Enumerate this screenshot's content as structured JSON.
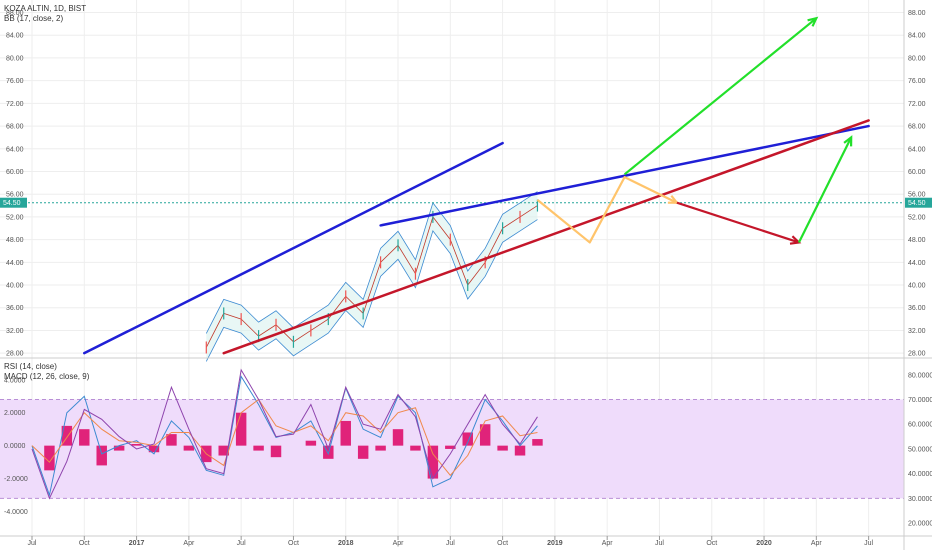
{
  "legends": {
    "symbol": "KOZA ALTIN, 1D, BIST",
    "bb": "BB (17, close, 2)",
    "rsi": "RSI (14, close)",
    "macd": "MACD (12, 26, close, 9)"
  },
  "current_price_label": "54.50",
  "colors": {
    "background": "#ffffff",
    "grid": "#eeeeee",
    "current_price": "#26a69a",
    "upper_trend": "#1f1fd6",
    "lower_trend": "#c4162a",
    "projection_orange": "#ffc46b",
    "projection_green": "#22e02a",
    "projection_red": "#c4162a",
    "rsi_band_fill": "#efdcfb",
    "rsi_band_line": "#b98fd6",
    "rsi_line": "#8e44ad",
    "macd_hist": "#e0237a",
    "macd_line": "#3c8ad1",
    "signal_line": "#f0894c"
  },
  "chart_data": [
    {
      "type": "line",
      "title": "KOZA ALTIN, 1D, BIST",
      "indicator": "BB (17, close, 2)",
      "x_ticks": [
        "Jul",
        "Oct",
        "2017",
        "Apr",
        "Jul",
        "Oct",
        "2018",
        "Apr",
        "Jul",
        "Oct",
        "2019",
        "Apr",
        "Jul",
        "Oct",
        "2020",
        "Apr",
        "Jul"
      ],
      "y_ticks": [
        "28.00",
        "32.00",
        "36.00",
        "40.00",
        "44.00",
        "48.00",
        "52.00",
        "56.00",
        "60.00",
        "64.00",
        "68.00",
        "72.00",
        "76.00",
        "80.00",
        "84.00",
        "88.00"
      ],
      "ylim": [
        27.5,
        89.5
      ],
      "current_price": 54.5,
      "price_series": {
        "x": [
          "2017-05",
          "2017-06",
          "2017-07",
          "2017-08",
          "2017-09",
          "2017-10",
          "2017-11",
          "2017-12",
          "2018-01",
          "2018-02",
          "2018-03",
          "2018-04",
          "2018-05",
          "2018-06",
          "2018-07",
          "2018-08",
          "2018-09",
          "2018-10",
          "2018-11",
          "2018-12"
        ],
        "y": [
          29,
          35,
          34,
          31,
          33,
          30,
          32,
          34,
          38,
          35,
          44,
          47,
          42,
          52,
          48,
          40,
          44,
          50,
          52,
          54
        ]
      },
      "trendlines": [
        {
          "name": "upper-channel",
          "color": "upper",
          "points": [
            [
              "2016-10",
              28
            ],
            [
              "2018-10",
              65
            ]
          ]
        },
        {
          "name": "resistance",
          "color": "upper",
          "points": [
            [
              "2018-03",
              50.5
            ],
            [
              "2020-07",
              68
            ]
          ]
        },
        {
          "name": "support",
          "color": "lower",
          "points": [
            [
              "2017-06",
              28
            ],
            [
              "2020-07",
              69
            ]
          ]
        }
      ],
      "projections": [
        {
          "color": "orange",
          "points": [
            [
              "2018-12",
              55
            ],
            [
              "2019-03",
              47.5
            ],
            [
              "2019-05",
              59
            ],
            [
              "2019-08",
              54.5
            ]
          ]
        },
        {
          "color": "green",
          "points": [
            [
              "2019-05",
              59.5
            ],
            [
              "2020-04",
              87
            ]
          ]
        },
        {
          "color": "red",
          "points": [
            [
              "2019-08",
              54.5
            ],
            [
              "2020-03",
              47.5
            ]
          ]
        },
        {
          "color": "green",
          "points": [
            [
              "2020-03",
              47.5
            ],
            [
              "2020-06",
              66
            ]
          ]
        }
      ]
    },
    {
      "type": "line",
      "indicators": [
        "RSI (14, close)",
        "MACD (12, 26, close, 9)"
      ],
      "left_ticks": [
        "4.0000",
        "2.0000",
        "0.0000",
        "-2.0000",
        "-4.0000"
      ],
      "right_ticks": [
        "80.0000",
        "70.0000",
        "60.0000",
        "50.0000",
        "40.0000",
        "30.0000",
        "20.0000"
      ],
      "macd_ylim": [
        -5,
        5.2
      ],
      "rsi_ylim": [
        18,
        86
      ],
      "rsi_band": [
        30,
        70
      ],
      "x": [
        "2016-07",
        "2016-08",
        "2016-09",
        "2016-10",
        "2016-11",
        "2016-12",
        "2017-01",
        "2017-02",
        "2017-03",
        "2017-04",
        "2017-05",
        "2017-06",
        "2017-07",
        "2017-08",
        "2017-09",
        "2017-10",
        "2017-11",
        "2017-12",
        "2018-01",
        "2018-02",
        "2018-03",
        "2018-04",
        "2018-05",
        "2018-06",
        "2018-07",
        "2018-08",
        "2018-09",
        "2018-10",
        "2018-11",
        "2018-12"
      ],
      "rsi": [
        50,
        30,
        45,
        66,
        62,
        55,
        50,
        52,
        75,
        58,
        42,
        40,
        82,
        70,
        55,
        56,
        68,
        50,
        75,
        60,
        58,
        72,
        63,
        38,
        48,
        60,
        72,
        60,
        52,
        63
      ],
      "macd": [
        0,
        -3,
        2,
        3,
        -0.5,
        0,
        0.3,
        -0.5,
        1.5,
        0.5,
        -1.5,
        -1.8,
        4.2,
        2.5,
        0.5,
        0.8,
        1.5,
        -0.5,
        3.5,
        1,
        0.5,
        3,
        2,
        -2.5,
        -2,
        0.2,
        2.8,
        1.5,
        0,
        1.2
      ],
      "signal": [
        0,
        -1,
        0.5,
        2,
        1,
        0.3,
        0.2,
        0,
        0.8,
        0.8,
        -0.5,
        -1.2,
        2,
        2.8,
        1.2,
        0.8,
        1.2,
        0.3,
        2,
        1.8,
        0.8,
        2,
        2.3,
        -0.5,
        -1.8,
        -0.6,
        1.5,
        1.8,
        0.6,
        0.8
      ],
      "histogram": [
        0,
        -1.5,
        1.2,
        1,
        -1.2,
        -0.3,
        0.1,
        -0.4,
        0.7,
        -0.3,
        -1,
        -0.6,
        2,
        -0.3,
        -0.7,
        0,
        0.3,
        -0.8,
        1.5,
        -0.8,
        -0.3,
        1,
        -0.3,
        -2,
        -0.2,
        0.8,
        1.3,
        -0.3,
        -0.6,
        0.4
      ]
    }
  ]
}
